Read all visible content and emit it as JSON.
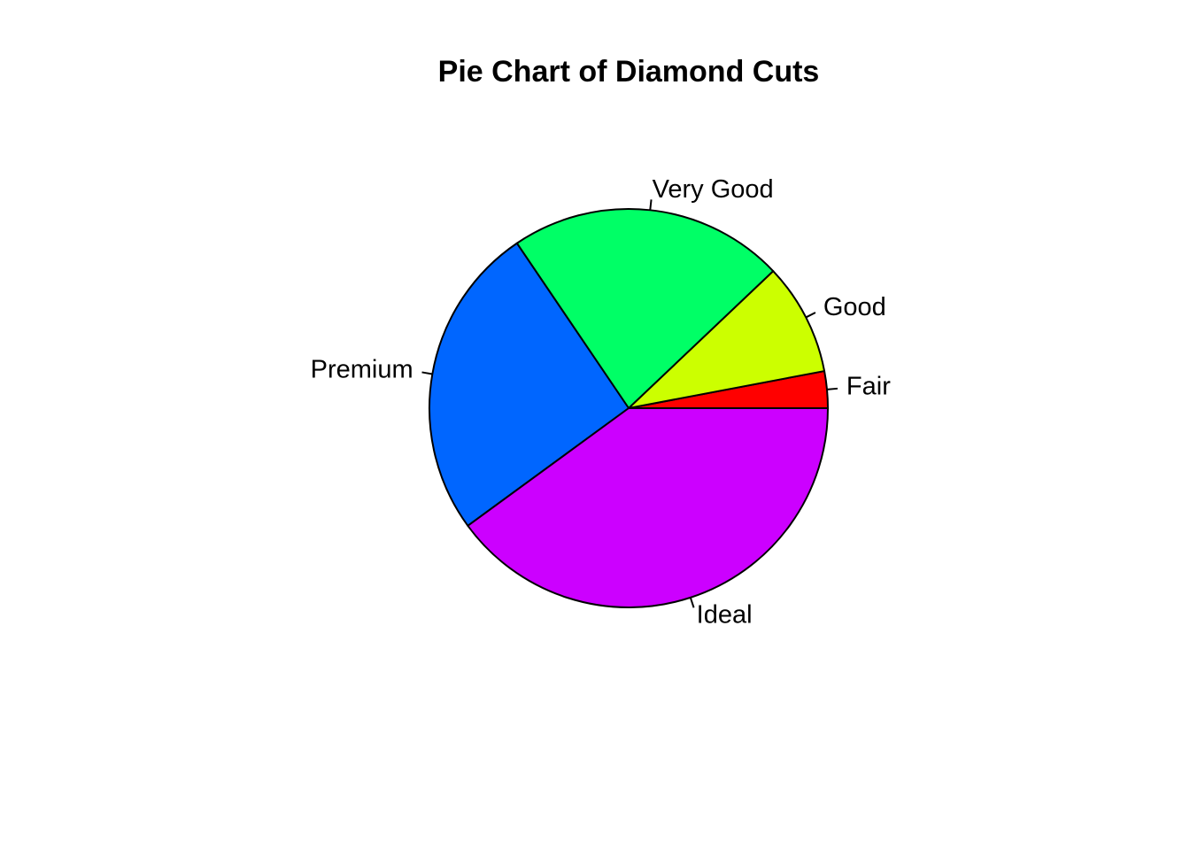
{
  "chart_data": {
    "type": "pie",
    "title": "Pie Chart of Diamond Cuts",
    "categories": [
      "Fair",
      "Good",
      "Very Good",
      "Premium",
      "Ideal"
    ],
    "values": [
      1610,
      4906,
      12082,
      13791,
      21551
    ],
    "colors": [
      "#FF0000",
      "#CCFF00",
      "#00FF66",
      "#0066FF",
      "#CC00FF"
    ],
    "start_angle_deg": 0,
    "direction": "counterclockwise",
    "legend": "none"
  }
}
